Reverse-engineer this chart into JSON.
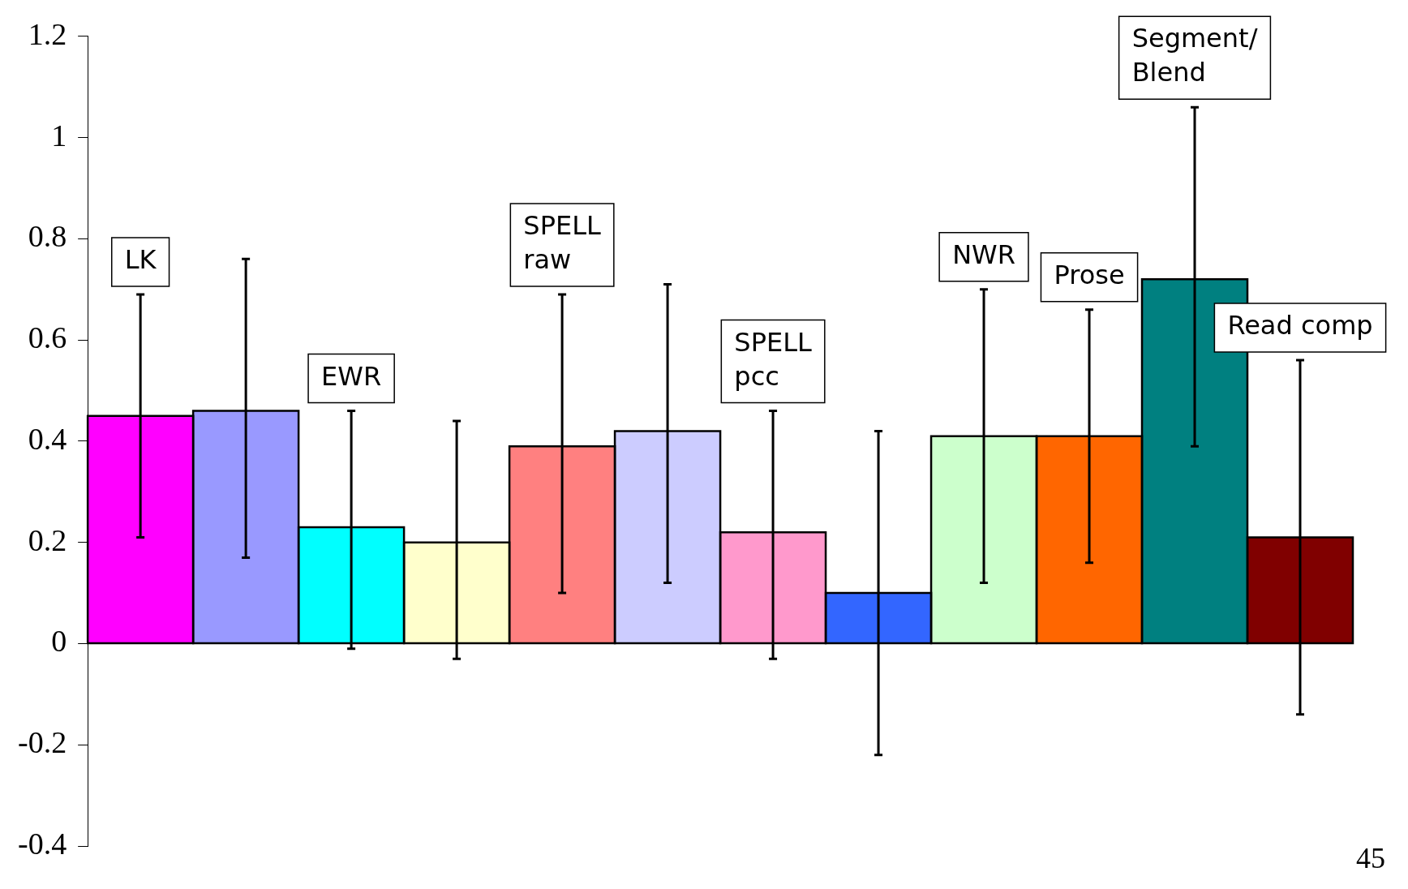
{
  "chart_data": {
    "type": "bar",
    "categories": [
      "LK",
      null,
      "EWR",
      null,
      "SPELL\nraw",
      null,
      "SPELL\npcc",
      null,
      "NWR",
      "Prose",
      "Segment/\nBlend",
      "Read comp"
    ],
    "values": [
      0.45,
      0.46,
      0.23,
      0.2,
      0.39,
      0.42,
      0.22,
      0.1,
      0.41,
      0.41,
      0.72,
      0.21
    ],
    "colors": [
      "#ff00ff",
      "#9999ff",
      "#00ffff",
      "#ffffcc",
      "#ff8080",
      "#ccccff",
      "#ff99cc",
      "#3366ff",
      "#ccffcc",
      "#ff6600",
      "#008080",
      "#800000"
    ],
    "errors": [
      [
        0.21,
        0.69
      ],
      [
        0.17,
        0.76
      ],
      [
        -0.01,
        0.46
      ],
      [
        -0.03,
        0.44
      ],
      [
        0.1,
        0.69
      ],
      [
        0.12,
        0.71
      ],
      [
        -0.03,
        0.46
      ],
      [
        -0.22,
        0.42
      ],
      [
        0.12,
        0.7
      ],
      [
        0.16,
        0.66
      ],
      [
        0.39,
        1.06
      ],
      [
        -0.14,
        0.56
      ]
    ],
    "ylim": [
      -0.4,
      1.2
    ],
    "yticks": [
      -0.4,
      -0.2,
      0,
      0.2,
      0.4,
      0.6,
      0.8,
      1,
      1.2
    ],
    "annotations": [
      "45"
    ]
  }
}
